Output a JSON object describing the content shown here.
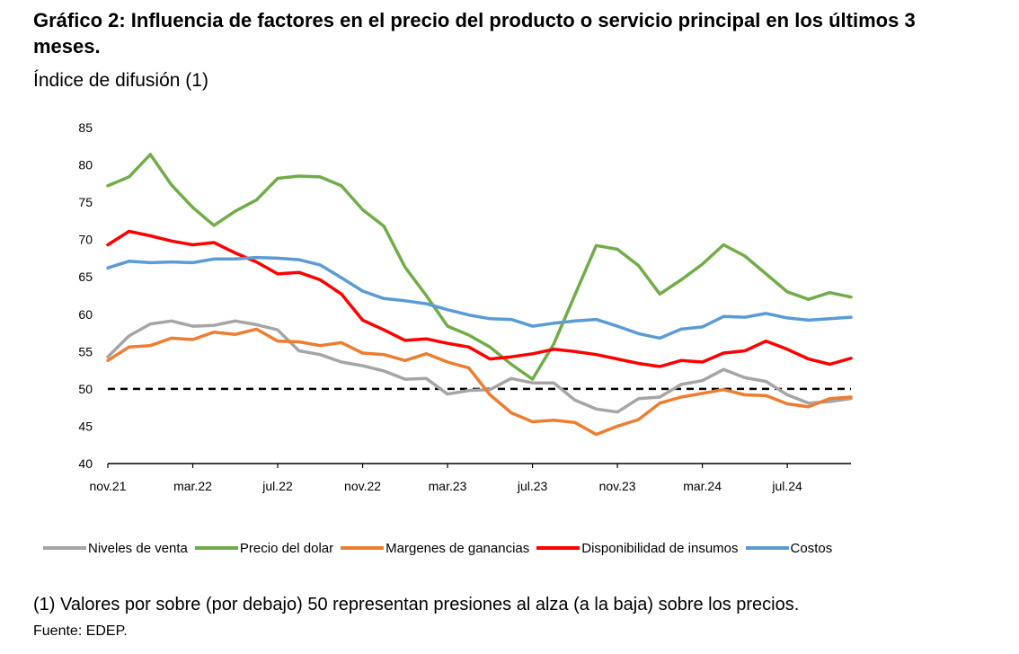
{
  "header": {
    "title": "Gráfico 2: Influencia de factores en el precio del producto o servicio principal en los últimos 3 meses.",
    "subtitle": "Índice de difusión (1)"
  },
  "footer": {
    "note": "(1) Valores por sobre (por debajo) 50 representan presiones al alza (a la baja) sobre los precios.",
    "source": "Fuente: EDEP."
  },
  "chart_data": {
    "type": "line",
    "title": "Gráfico 2: Influencia de factores en el precio del producto o servicio principal en los últimos 3 meses.",
    "subtitle": "Índice de difusión (1)",
    "ylim": [
      40,
      85
    ],
    "y_ticks": [
      40,
      45,
      50,
      55,
      60,
      65,
      70,
      75,
      80,
      85
    ],
    "x_tick_labels": [
      {
        "index": 0,
        "label": "nov.21"
      },
      {
        "index": 4,
        "label": "mar.22"
      },
      {
        "index": 8,
        "label": "jul.22"
      },
      {
        "index": 12,
        "label": "nov.22"
      },
      {
        "index": 16,
        "label": "mar.23"
      },
      {
        "index": 20,
        "label": "jul.23"
      },
      {
        "index": 24,
        "label": "nov.23"
      },
      {
        "index": 28,
        "label": "mar.24"
      },
      {
        "index": 32,
        "label": "jul.24"
      }
    ],
    "n_points": 36,
    "grid": false,
    "legend_position": "bottom",
    "reference_line": {
      "y": 50,
      "style": "dashed",
      "color": "#000000"
    },
    "series": [
      {
        "name": "Niveles de venta",
        "color": "#a5a5a5",
        "values": [
          54.3,
          57.1,
          58.7,
          59.1,
          58.4,
          58.5,
          59.1,
          58.6,
          57.9,
          55.1,
          54.6,
          53.6,
          53.1,
          52.4,
          51.3,
          51.4,
          49.3,
          49.8,
          49.9,
          51.4,
          50.8,
          50.8,
          48.5,
          47.3,
          46.9,
          48.7,
          48.9,
          50.6,
          51.1,
          52.6,
          51.5,
          51.0,
          49.2,
          48.1,
          48.3,
          48.7
        ]
      },
      {
        "name": "Precio del dolar",
        "color": "#70ad47",
        "values": [
          77.2,
          78.4,
          81.4,
          77.3,
          74.3,
          71.9,
          73.8,
          75.3,
          78.2,
          78.5,
          78.4,
          77.2,
          74.0,
          71.8,
          66.3,
          62.5,
          58.4,
          57.2,
          55.6,
          53.3,
          51.3,
          56.0,
          62.6,
          69.2,
          68.7,
          66.5,
          62.7,
          64.6,
          66.7,
          69.3,
          67.8,
          65.4,
          63.0,
          62.0,
          62.9,
          62.3
        ]
      },
      {
        "name": "Margenes de ganancias",
        "color": "#ed7d31",
        "values": [
          53.8,
          55.6,
          55.8,
          56.8,
          56.6,
          57.6,
          57.3,
          58.0,
          56.4,
          56.3,
          55.8,
          56.2,
          54.8,
          54.6,
          53.8,
          54.7,
          53.6,
          52.8,
          49.2,
          46.8,
          45.6,
          45.8,
          45.5,
          43.9,
          45.0,
          45.9,
          48.1,
          48.9,
          49.4,
          49.9,
          49.2,
          49.1,
          48.0,
          47.6,
          48.7,
          48.9
        ]
      },
      {
        "name": "Disponibilidad de insumos",
        "color": "#ff0000",
        "values": [
          69.3,
          71.1,
          70.5,
          69.8,
          69.3,
          69.6,
          68.2,
          67.0,
          65.4,
          65.6,
          64.6,
          62.7,
          59.2,
          57.9,
          56.5,
          56.7,
          56.1,
          55.6,
          54.0,
          54.3,
          54.7,
          55.3,
          55.0,
          54.6,
          54.0,
          53.4,
          53.0,
          53.8,
          53.6,
          54.8,
          55.1,
          56.4,
          55.3,
          54.0,
          53.3,
          54.1
        ]
      },
      {
        "name": "Costos",
        "color": "#5b9bd5",
        "values": [
          66.2,
          67.1,
          66.9,
          67.0,
          66.9,
          67.4,
          67.4,
          67.6,
          67.5,
          67.3,
          66.6,
          64.9,
          63.1,
          62.1,
          61.8,
          61.4,
          60.6,
          59.9,
          59.4,
          59.3,
          58.4,
          58.8,
          59.1,
          59.3,
          58.4,
          57.4,
          56.8,
          58.0,
          58.3,
          59.7,
          59.6,
          60.1,
          59.5,
          59.2,
          59.4,
          59.6
        ]
      }
    ]
  }
}
